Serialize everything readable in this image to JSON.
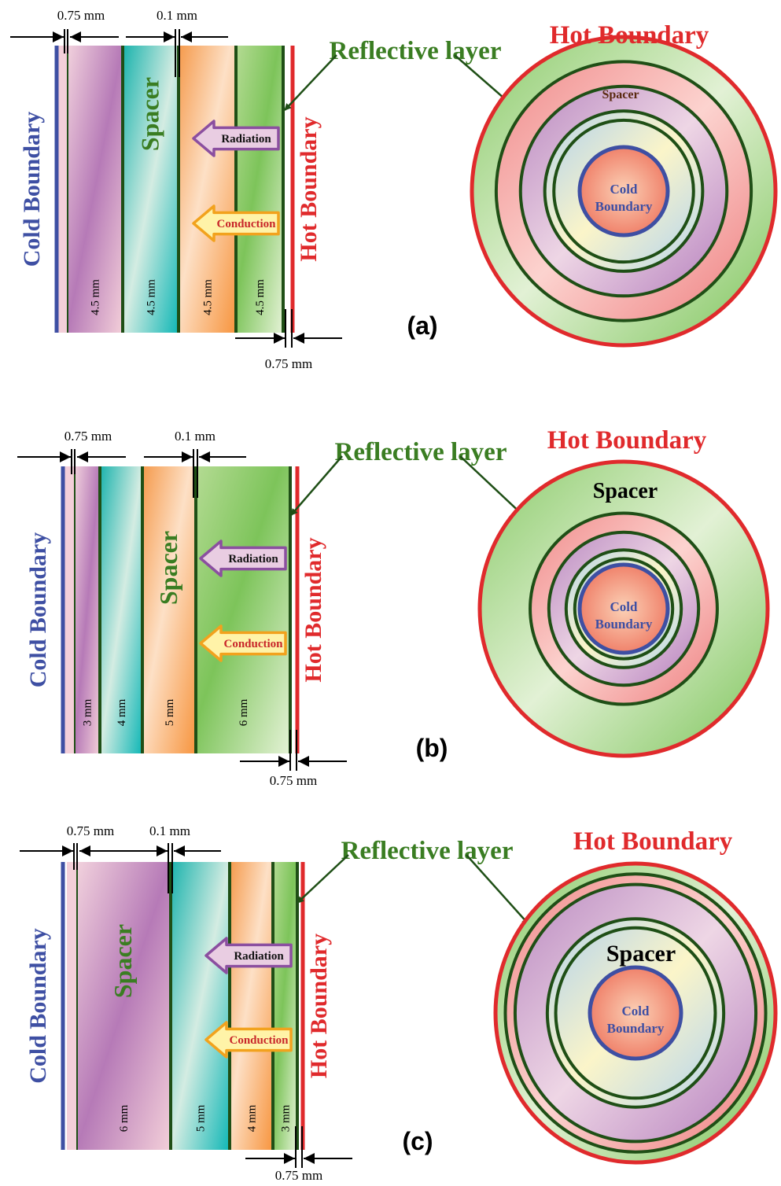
{
  "colors": {
    "cold": "#3e4fa3",
    "hot": "#e02a2c",
    "reflective": "#1f4f16",
    "green_text": "#3a7d22",
    "arrow_radiation": "#8b4fa0",
    "arrow_conduction": "#f2a21d",
    "conduction_text": "#c8262a"
  },
  "common": {
    "cold_boundary": "Cold Boundary",
    "hot_boundary": "Hot Boundary",
    "reflective_layer": "Reflective layer",
    "spacer": "Spacer",
    "radiation": "Radiation",
    "conduction": "Conduction",
    "dim_reflective": "0.75 mm",
    "dim_gap": "0.1 mm",
    "circle_cold_line1": "Cold",
    "circle_cold_line2": "Boundary"
  },
  "panels": [
    {
      "id": "a",
      "label": "(a)",
      "layer_thicknesses": [
        "4.5 mm",
        "4.5 mm",
        "4.5 mm",
        "4.5 mm"
      ],
      "layer_fills": [
        "purple",
        "teal",
        "orange",
        "green"
      ],
      "spacer_layer_index": 1
    },
    {
      "id": "b",
      "label": "(b)",
      "layer_thicknesses": [
        "3 mm",
        "4 mm",
        "5 mm",
        "6 mm"
      ],
      "layer_fills": [
        "purple",
        "teal",
        "orange",
        "green"
      ],
      "spacer_layer_index": 2
    },
    {
      "id": "c",
      "label": "(c)",
      "layer_thicknesses": [
        "6 mm",
        "5 mm",
        "4 mm",
        "3 mm"
      ],
      "layer_fills": [
        "purple",
        "teal",
        "orange",
        "green"
      ],
      "spacer_layer_index": 0
    }
  ]
}
